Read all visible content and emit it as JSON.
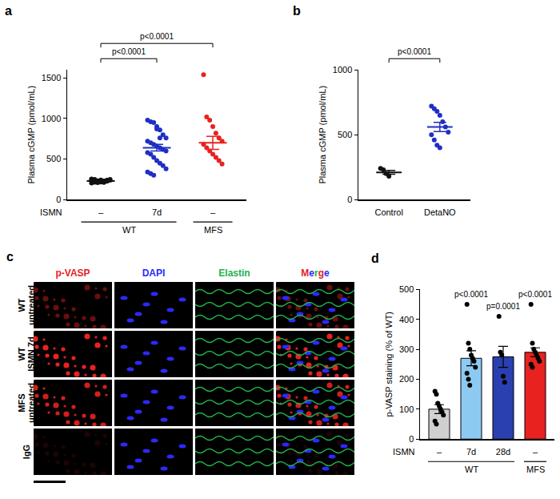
{
  "chart_data": [
    {
      "panel_label": "a",
      "type": "scatter",
      "y_label": "Plasma cGMP (pmol/mL)",
      "category_title": "ISMN",
      "categories": [
        "–",
        "7d",
        "–"
      ],
      "groups": [
        "WT",
        "WT",
        "MFS"
      ],
      "colors": [
        "#111111",
        "#1f2fc4",
        "#e8221f"
      ],
      "points": [
        [
          205,
          215,
          220,
          225,
          230,
          235,
          240,
          245,
          250,
          210,
          218,
          228,
          238,
          248,
          255,
          222,
          232,
          242,
          212,
          226
        ],
        [
          980,
          960,
          950,
          900,
          860,
          800,
          760,
          720,
          700,
          680,
          660,
          640,
          620,
          600,
          580,
          560,
          520,
          480,
          450,
          420,
          380,
          340,
          320,
          300,
          870,
          760
        ],
        [
          1540,
          1020,
          980,
          900,
          820,
          760,
          720,
          680,
          640,
          600,
          560,
          520,
          480,
          440
        ]
      ],
      "mean": [
        230,
        640,
        700
      ],
      "sem": [
        5,
        40,
        80
      ],
      "ylim": [
        0,
        1600
      ],
      "yticks": [
        0,
        500,
        1000,
        1500
      ],
      "grid": false,
      "comparisons": [
        {
          "from": 0,
          "to": 1,
          "label": "p<0.0001"
        },
        {
          "from": 0,
          "to": 2,
          "label": "p<0.0001"
        }
      ]
    },
    {
      "panel_label": "b",
      "type": "scatter",
      "y_label": "Plasma cGMP (pmol/mL)",
      "categories": [
        "Control",
        "DetaNO"
      ],
      "colors": [
        "#111111",
        "#1f2fc4"
      ],
      "points": [
        [
          240,
          230,
          200,
          180
        ],
        [
          720,
          700,
          680,
          650,
          600,
          560,
          520,
          500,
          460,
          420,
          400
        ]
      ],
      "mean": [
        210,
        560
      ],
      "sem": [
        15,
        35
      ],
      "ylim": [
        0,
        1000
      ],
      "yticks": [
        0,
        500,
        1000
      ],
      "grid": false,
      "comparisons": [
        {
          "from": 0,
          "to": 1,
          "label": "p<0.0001"
        }
      ]
    },
    {
      "panel_label": "d",
      "type": "bar",
      "y_label": "p-VASP staining (% of WT)",
      "category_title": "ISMN",
      "categories": [
        "–",
        "7d",
        "28d",
        "–"
      ],
      "groups": [
        "WT",
        "WT",
        "WT",
        "MFS"
      ],
      "values": [
        100,
        270,
        275,
        290
      ],
      "errors": [
        15,
        25,
        35,
        15
      ],
      "colors": [
        "#d0d0d0",
        "#8ccaf2",
        "#2a3fb0",
        "#e8221f"
      ],
      "points": [
        [
          160,
          150,
          120,
          110,
          100,
          90,
          80,
          60,
          50
        ],
        [
          450,
          320,
          300,
          280,
          270,
          260,
          240,
          220,
          200,
          180
        ],
        [
          410,
          290,
          280,
          210,
          190
        ],
        [
          450,
          320,
          300,
          290,
          280,
          270,
          260,
          250,
          240
        ]
      ],
      "p_labels": [
        null,
        "p<0.0001",
        "p=0.0001",
        "p<0.0001"
      ],
      "ylim": [
        0,
        500
      ],
      "yticks": [
        0,
        100,
        200,
        300,
        400,
        500
      ],
      "grid": false
    }
  ],
  "image_panel": {
    "panel_label": "c",
    "columns": [
      {
        "label": "p-VASP",
        "color": "#e8221f"
      },
      {
        "label": "DAPI",
        "color": "#2a2aff"
      },
      {
        "label": "Elastin",
        "color": "#22b14c"
      },
      {
        "label": "Merge",
        "color": "#e8221f"
      }
    ],
    "rows": [
      [
        "WT",
        "untreated"
      ],
      [
        "WT",
        "ISMN 7d"
      ],
      [
        "MFS",
        "untreated"
      ],
      [
        "IgG"
      ]
    ]
  }
}
